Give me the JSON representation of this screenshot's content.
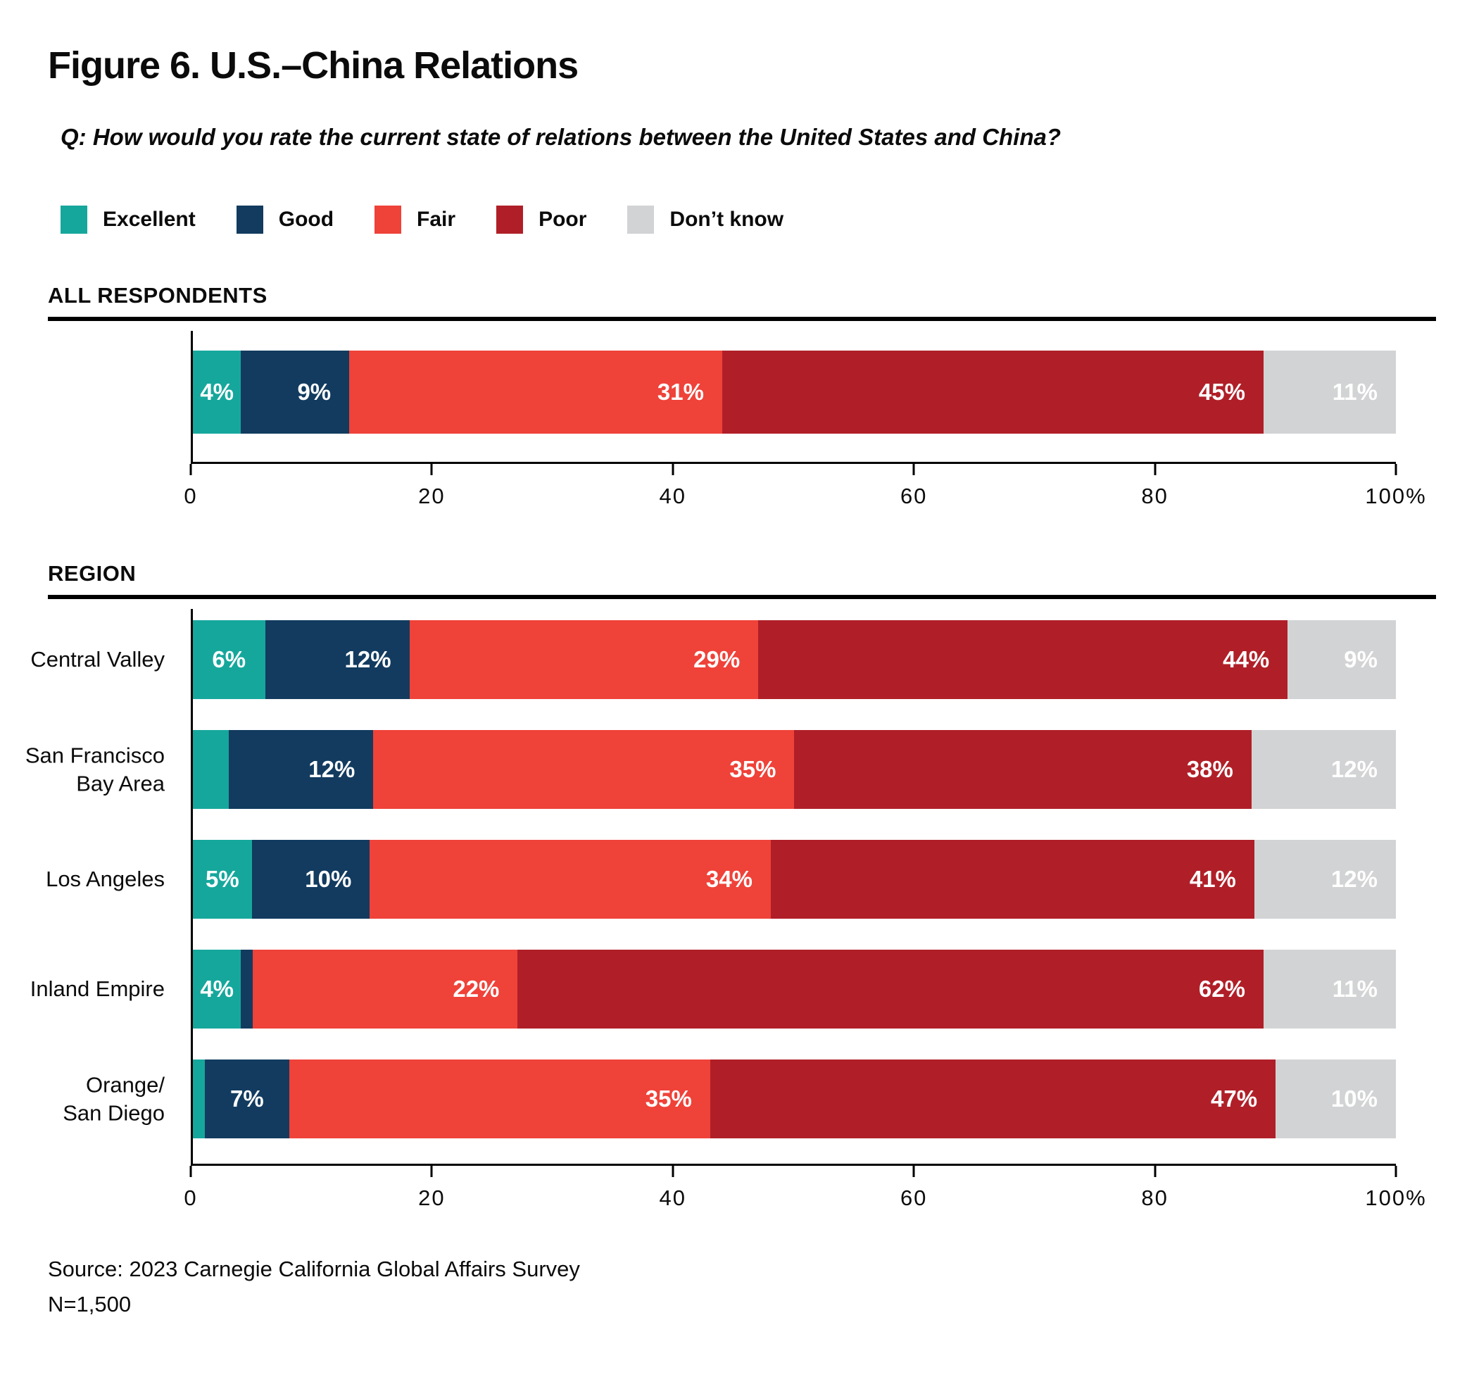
{
  "figure": {
    "title": "Figure 6. U.S.–China Relations",
    "question": "Q: How would you rate the current state of relations between the United States and China?",
    "source_line1": "Source: 2023 Carnegie California Global Affairs Survey",
    "source_line2": "N=1,500"
  },
  "colors": {
    "excellent": "#16A79C",
    "good": "#123B5F",
    "fair": "#EF4239",
    "poor": "#B01F28",
    "dont_know": "#D2D3D4",
    "axis": "#000000",
    "text": "#0B0B0B"
  },
  "legend": [
    {
      "key": "excellent",
      "label": "Excellent",
      "color": "#16A79C"
    },
    {
      "key": "good",
      "label": "Good",
      "color": "#123B5F"
    },
    {
      "key": "fair",
      "label": "Fair",
      "color": "#EF4239"
    },
    {
      "key": "poor",
      "label": "Poor",
      "color": "#B01F28"
    },
    {
      "key": "dont_know",
      "label": "Don’t know",
      "color": "#D2D3D4"
    }
  ],
  "chart_data": [
    {
      "type": "bar",
      "stacked": true,
      "orientation": "horizontal",
      "section_heading": "ALL RESPONDENTS",
      "categories": [
        "All respondents"
      ],
      "category_label_lines": [
        []
      ],
      "xlim": [
        0,
        100
      ],
      "x_tick_values": [
        0,
        20,
        40,
        60,
        80,
        100
      ],
      "x_tick_labels": [
        "0",
        "20",
        "40",
        "60",
        "80",
        "100%"
      ],
      "grid": false,
      "legend_position": "top",
      "series": [
        {
          "name": "Excellent",
          "key": "excellent",
          "values": [
            4
          ],
          "labels": [
            "4%"
          ]
        },
        {
          "name": "Good",
          "key": "good",
          "values": [
            9
          ],
          "labels": [
            "9%"
          ]
        },
        {
          "name": "Fair",
          "key": "fair",
          "values": [
            31
          ],
          "labels": [
            "31%"
          ]
        },
        {
          "name": "Poor",
          "key": "poor",
          "values": [
            45
          ],
          "labels": [
            "45%"
          ]
        },
        {
          "name": "Don’t know",
          "key": "dont_know",
          "values": [
            11
          ],
          "labels": [
            "11%"
          ]
        }
      ]
    },
    {
      "type": "bar",
      "stacked": true,
      "orientation": "horizontal",
      "section_heading": "REGION",
      "categories": [
        "Central Valley",
        "San Francisco Bay Area",
        "Los Angeles",
        "Inland Empire",
        "Orange/San Diego"
      ],
      "category_label_lines": [
        [
          "Central Valley"
        ],
        [
          "San Francisco",
          "Bay Area"
        ],
        [
          "Los Angeles"
        ],
        [
          "Inland Empire"
        ],
        [
          "Orange/",
          "San Diego"
        ]
      ],
      "xlim": [
        0,
        100
      ],
      "x_tick_values": [
        0,
        20,
        40,
        60,
        80,
        100
      ],
      "x_tick_labels": [
        "0",
        "20",
        "40",
        "60",
        "80",
        "100%"
      ],
      "grid": false,
      "series": [
        {
          "name": "Excellent",
          "key": "excellent",
          "values": [
            6,
            3,
            5,
            4,
            1
          ],
          "labels": [
            "6%",
            "",
            "5%",
            "4%",
            ""
          ]
        },
        {
          "name": "Good",
          "key": "good",
          "values": [
            12,
            12,
            10,
            1,
            7
          ],
          "labels": [
            "12%",
            "12%",
            "10%",
            "",
            "7%"
          ]
        },
        {
          "name": "Fair",
          "key": "fair",
          "values": [
            29,
            35,
            34,
            22,
            35
          ],
          "labels": [
            "29%",
            "35%",
            "34%",
            "22%",
            "35%"
          ]
        },
        {
          "name": "Poor",
          "key": "poor",
          "values": [
            44,
            38,
            41,
            62,
            47
          ],
          "labels": [
            "44%",
            "38%",
            "41%",
            "62%",
            "47%"
          ]
        },
        {
          "name": "Don’t know",
          "key": "dont_know",
          "values": [
            9,
            12,
            12,
            11,
            10
          ],
          "labels": [
            "9%",
            "12%",
            "12%",
            "11%",
            "10%"
          ]
        }
      ]
    }
  ]
}
